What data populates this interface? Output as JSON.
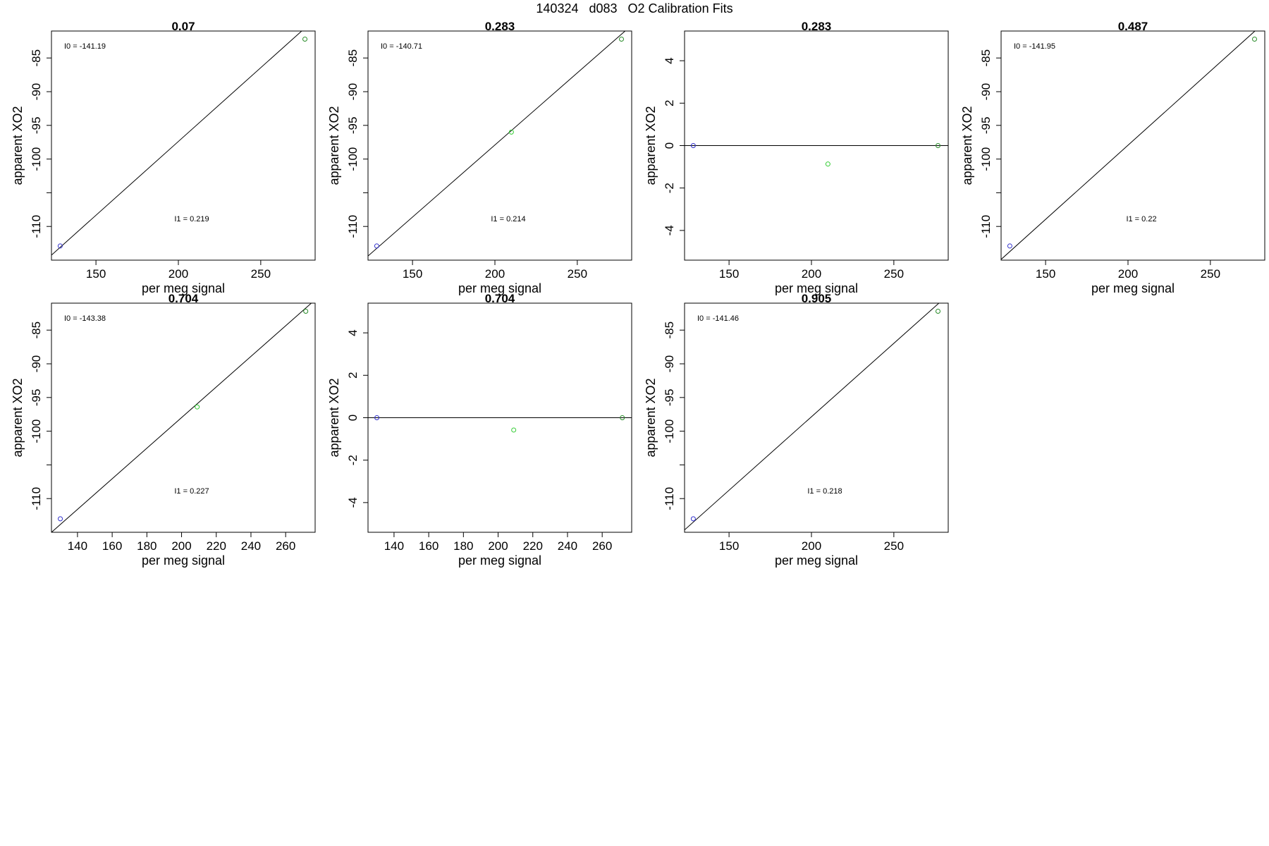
{
  "figure": {
    "title": "140324   d083   O2 Calibration Fits"
  },
  "chart_data": [
    {
      "type": "scatter",
      "title": "0.07",
      "xlabel": "per meg signal",
      "ylabel": "apparent XO2",
      "xlim": [
        123,
        283
      ],
      "ylim": [
        -115,
        -81
      ],
      "xticks": [
        150,
        200,
        250
      ],
      "yticks": [
        -110,
        -105,
        -100,
        -95,
        -90,
        -85
      ],
      "ytick_labels": [
        "-110",
        "",
        "-100",
        "-95",
        "-90",
        "-85"
      ],
      "points": [
        {
          "x": 128.3,
          "y": -112.9,
          "color": "#3030cc"
        },
        {
          "x": 276.8,
          "y": -82.2,
          "color": "#2a8c2a"
        }
      ],
      "fit_line": {
        "intercept": -141.19,
        "slope": 0.219
      },
      "annotations": [
        "I0 =  -141.19",
        "I1 =  0.219"
      ]
    },
    {
      "type": "scatter",
      "title": "0.283",
      "xlabel": "per meg signal",
      "ylabel": "apparent XO2",
      "xlim": [
        123,
        283
      ],
      "ylim": [
        -115,
        -81
      ],
      "xticks": [
        150,
        200,
        250
      ],
      "yticks": [
        -110,
        -105,
        -100,
        -95,
        -90,
        -85
      ],
      "ytick_labels": [
        "-110",
        "",
        "-100",
        "-95",
        "-90",
        "-85"
      ],
      "points": [
        {
          "x": 128.3,
          "y": -112.9,
          "color": "#3030cc"
        },
        {
          "x": 210.0,
          "y": -96.0,
          "color": "#33cc33"
        },
        {
          "x": 276.8,
          "y": -82.2,
          "color": "#2a8c2a"
        }
      ],
      "fit_line": {
        "intercept": -140.71,
        "slope": 0.214
      },
      "annotations": [
        "I0 =  -140.71",
        "I1 =  0.214"
      ]
    },
    {
      "type": "scatter",
      "title": "0.283",
      "xlabel": "per meg signal",
      "ylabel": "apparent XO2",
      "xlim": [
        123,
        283
      ],
      "ylim": [
        -5.4,
        5.4
      ],
      "xticks": [
        150,
        200,
        250
      ],
      "yticks": [
        -4,
        -2,
        0,
        2,
        4
      ],
      "ytick_labels": [
        "-4",
        "-2",
        "0",
        "2",
        "4"
      ],
      "points": [
        {
          "x": 128.3,
          "y": 0.0,
          "color": "#3030cc"
        },
        {
          "x": 210.0,
          "y": -0.87,
          "color": "#33cc33"
        },
        {
          "x": 276.8,
          "y": 0.0,
          "color": "#2a8c2a"
        }
      ],
      "hline": 0,
      "annotations": []
    },
    {
      "type": "scatter",
      "title": "0.487",
      "xlabel": "per meg signal",
      "ylabel": "apparent XO2",
      "xlim": [
        123,
        283
      ],
      "ylim": [
        -115,
        -81
      ],
      "xticks": [
        150,
        200,
        250
      ],
      "yticks": [
        -110,
        -105,
        -100,
        -95,
        -90,
        -85
      ],
      "ytick_labels": [
        "-110",
        "",
        "-100",
        "-95",
        "-90",
        "-85"
      ],
      "points": [
        {
          "x": 128.3,
          "y": -112.9,
          "color": "#3030cc"
        },
        {
          "x": 276.8,
          "y": -82.2,
          "color": "#2a8c2a"
        }
      ],
      "fit_line": {
        "intercept": -141.95,
        "slope": 0.22
      },
      "annotations": [
        "I0 =  -141.95",
        "I1 =  0.22"
      ]
    },
    {
      "type": "scatter",
      "title": "0.704",
      "xlabel": "per meg signal",
      "ylabel": "apparent XO2",
      "xlim": [
        125,
        277
      ],
      "ylim": [
        -115,
        -81
      ],
      "xticks": [
        140,
        160,
        180,
        200,
        220,
        240,
        260
      ],
      "yticks": [
        -110,
        -105,
        -100,
        -95,
        -90,
        -85
      ],
      "ytick_labels": [
        "-110",
        "",
        "-100",
        "-95",
        "-90",
        "-85"
      ],
      "points": [
        {
          "x": 130.1,
          "y": -113.0,
          "color": "#3030cc"
        },
        {
          "x": 209.0,
          "y": -96.4,
          "color": "#33cc33"
        },
        {
          "x": 271.6,
          "y": -82.2,
          "color": "#2a8c2a"
        }
      ],
      "fit_line": {
        "intercept": -143.38,
        "slope": 0.227
      },
      "annotations": [
        "I0 =  -143.38",
        "I1 =  0.227"
      ]
    },
    {
      "type": "scatter",
      "title": "0.704",
      "xlabel": "per meg signal",
      "ylabel": "apparent XO2",
      "xlim": [
        125,
        277
      ],
      "ylim": [
        -5.4,
        5.4
      ],
      "xticks": [
        140,
        160,
        180,
        200,
        220,
        240,
        260
      ],
      "yticks": [
        -4,
        -2,
        0,
        2,
        4
      ],
      "ytick_labels": [
        "-4",
        "-2",
        "0",
        "2",
        "4"
      ],
      "points": [
        {
          "x": 130.1,
          "y": 0.0,
          "color": "#3030cc"
        },
        {
          "x": 209.0,
          "y": -0.58,
          "color": "#33cc33"
        },
        {
          "x": 271.6,
          "y": 0.0,
          "color": "#2a8c2a"
        }
      ],
      "hline": 0,
      "annotations": []
    },
    {
      "type": "scatter",
      "title": "0.905",
      "xlabel": "per meg signal",
      "ylabel": "apparent XO2",
      "xlim": [
        123,
        283
      ],
      "ylim": [
        -115,
        -81
      ],
      "xticks": [
        150,
        200,
        250
      ],
      "yticks": [
        -110,
        -105,
        -100,
        -95,
        -90,
        -85
      ],
      "ytick_labels": [
        "-110",
        "",
        "-100",
        "-95",
        "-90",
        "-85"
      ],
      "points": [
        {
          "x": 128.3,
          "y": -113.0,
          "color": "#3030cc"
        },
        {
          "x": 276.8,
          "y": -82.2,
          "color": "#2a8c2a"
        }
      ],
      "fit_line": {
        "intercept": -141.46,
        "slope": 0.218
      },
      "annotations": [
        "I0 =  -141.46",
        "I1 =  0.218"
      ]
    }
  ]
}
